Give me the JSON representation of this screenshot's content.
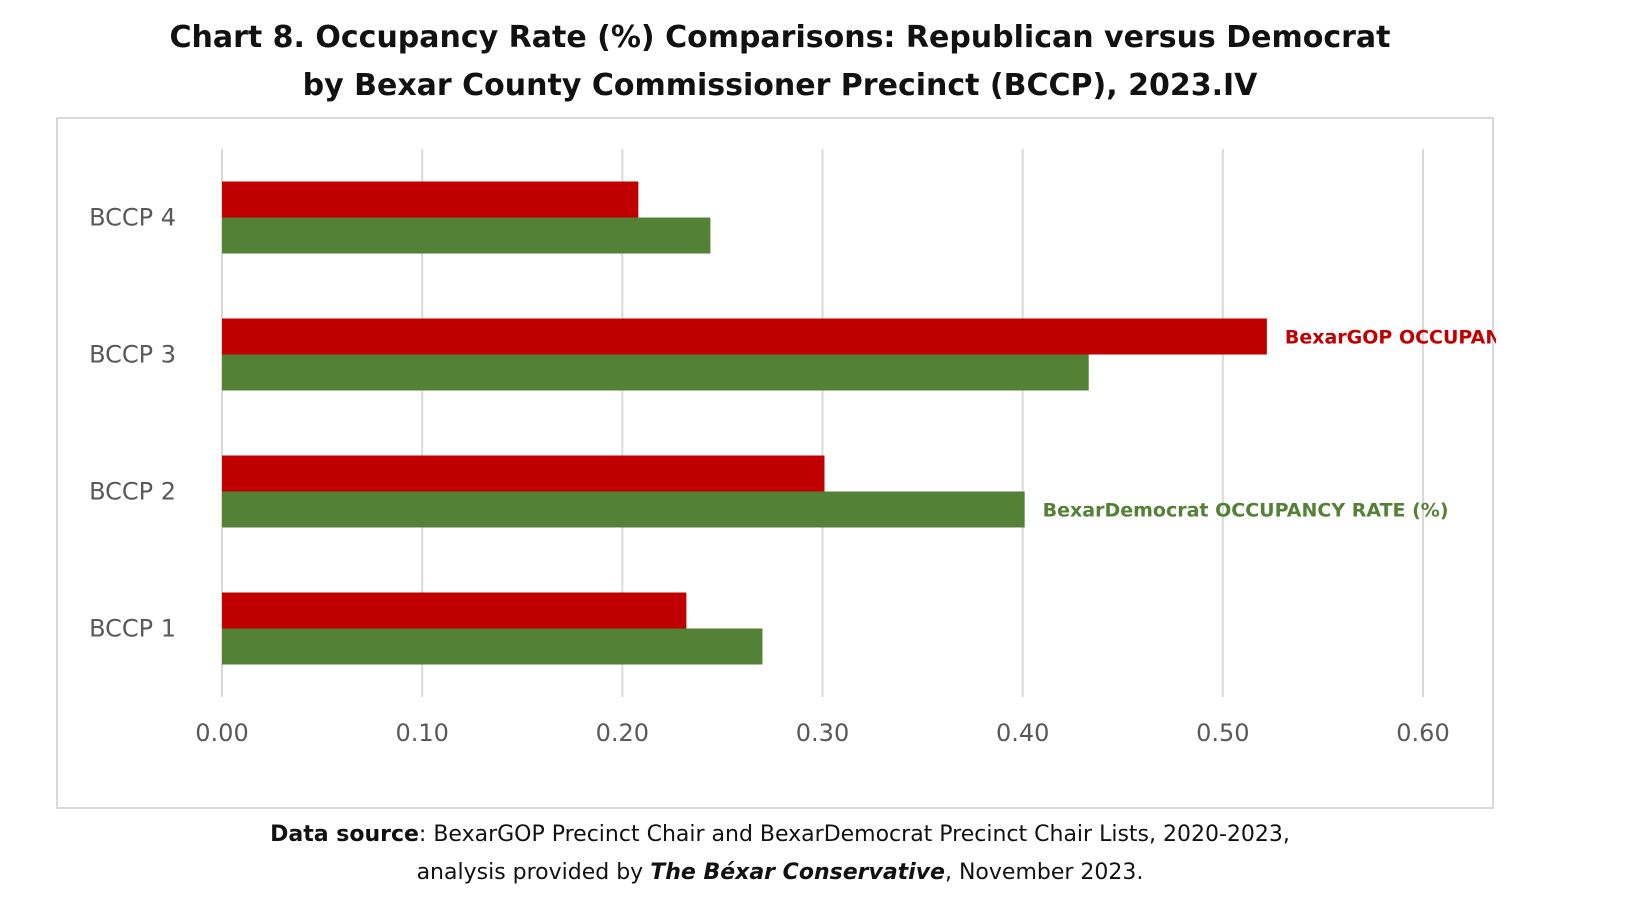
{
  "title": {
    "line1": "Chart 8. Occupancy Rate (%) Comparisons: Republican versus Democrat",
    "line2": "by Bexar County Commissioner Precinct (BCCP), 2023.IV"
  },
  "footer": {
    "source_label": "Data source",
    "source_text": ": BexarGOP Precinct Chair and BexarDemocrat Precinct Chair Lists, 2020-2023,",
    "analysis_prefix": "analysis provided by ",
    "analysis_org": "The Béxar Conservative",
    "analysis_suffix": ", November 2023."
  },
  "chart_data": {
    "type": "bar",
    "orientation": "horizontal",
    "categories": [
      "BCCP 1",
      "BCCP 2",
      "BCCP 3",
      "BCCP 4"
    ],
    "series": [
      {
        "name": "BexarGOP OCCUPANCY RATE (%)",
        "color": "#c00000",
        "values": [
          0.232,
          0.301,
          0.522,
          0.208
        ]
      },
      {
        "name": "BexarDemocrat OCCUPANCY RATE (%)",
        "color": "#538135",
        "values": [
          0.27,
          0.401,
          0.433,
          0.244
        ]
      }
    ],
    "xlim": [
      0,
      0.6
    ],
    "xticks": [
      "0.00",
      "0.10",
      "0.20",
      "0.30",
      "0.40",
      "0.50",
      "0.60"
    ],
    "grid": "vertical",
    "legend": "inline-labels"
  }
}
